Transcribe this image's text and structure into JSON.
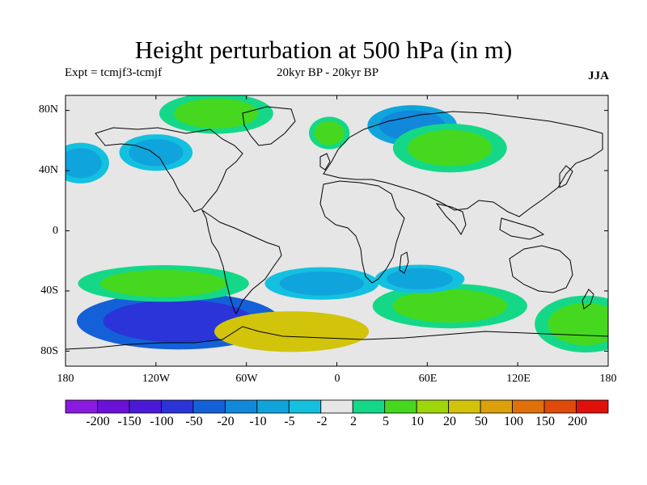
{
  "header": {
    "title": "Height perturbation at 500 hPa (in m)",
    "experiment": "Expt = tcmjf3-tcmjf",
    "period": "20kyr BP - 20kyr BP",
    "season": "JJA"
  },
  "axes": {
    "lat_ticks": [
      "80N",
      "40N",
      "0",
      "40S",
      "80S"
    ],
    "lon_ticks": [
      "180",
      "120W",
      "60W",
      "0",
      "60E",
      "120E",
      "180"
    ]
  },
  "colorbar": {
    "colors": [
      "#8a1ae0",
      "#6a10d8",
      "#4a1ad8",
      "#2a34d8",
      "#1460d8",
      "#1288da",
      "#10a4dc",
      "#14c0e0",
      "#e6e6e6",
      "#14d888",
      "#46d81e",
      "#9ed60a",
      "#d2c40a",
      "#dca00a",
      "#e0700a",
      "#e04a0a",
      "#e0100a"
    ],
    "labels": [
      "-200",
      "-150",
      "-100",
      "-50",
      "-20",
      "-10",
      "-5",
      "-2",
      "2",
      "5",
      "10",
      "20",
      "50",
      "100",
      "150",
      "200"
    ]
  },
  "map_regions": [
    {
      "name": "blob-nh-green-greenland",
      "lon": -80,
      "lat": 78,
      "rlon": 28,
      "rlat": 10,
      "level": 10
    },
    {
      "name": "blob-nh-blue-scandinavia",
      "lon": 50,
      "lat": 70,
      "rlon": 22,
      "rlat": 10,
      "level": -10
    },
    {
      "name": "blob-nh-green-europe",
      "lon": -5,
      "lat": 65,
      "rlon": 10,
      "rlat": 8,
      "level": 10
    },
    {
      "name": "blob-nh-green-asia",
      "lon": 75,
      "lat": 55,
      "rlon": 28,
      "rlat": 12,
      "level": 10
    },
    {
      "name": "blob-nh-blue-pacific",
      "lon": -170,
      "lat": 45,
      "rlon": 14,
      "rlat": 10,
      "level": -5
    },
    {
      "name": "blob-nh-blue-na",
      "lon": -120,
      "lat": 52,
      "rlon": 18,
      "rlat": 9,
      "level": -5
    },
    {
      "name": "blob-sh-blue-pacific",
      "lon": -105,
      "lat": -60,
      "rlon": 50,
      "rlat": 14,
      "level": -50
    },
    {
      "name": "blob-sh-green-pacific",
      "lon": -115,
      "lat": -35,
      "rlon": 42,
      "rlat": 9,
      "level": 10
    },
    {
      "name": "blob-sh-orange-atlantic",
      "lon": -30,
      "lat": -67,
      "rlon": 38,
      "rlat": 10,
      "level": 50
    },
    {
      "name": "blob-sh-blue-atlantic",
      "lon": -10,
      "lat": -35,
      "rlon": 28,
      "rlat": 8,
      "level": -5
    },
    {
      "name": "blob-sh-green-indian",
      "lon": 75,
      "lat": -50,
      "rlon": 38,
      "rlat": 11,
      "level": 10
    },
    {
      "name": "blob-sh-blue-indian",
      "lon": 55,
      "lat": -32,
      "rlon": 22,
      "rlat": 7,
      "level": -5
    },
    {
      "name": "blob-sh-green-au",
      "lon": 165,
      "lat": -62,
      "rlon": 25,
      "rlat": 14,
      "level": 10
    }
  ]
}
